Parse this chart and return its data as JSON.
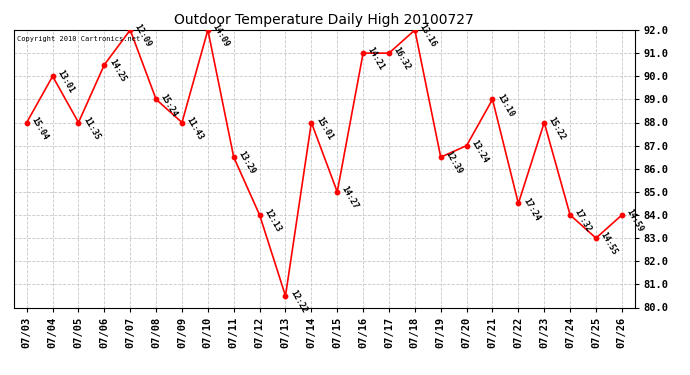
{
  "title": "Outdoor Temperature Daily High 20100727",
  "copyright": "Copyright 2010 Cartronics.net",
  "dates": [
    "07/03",
    "07/04",
    "07/05",
    "07/06",
    "07/07",
    "07/08",
    "07/09",
    "07/10",
    "07/11",
    "07/12",
    "07/13",
    "07/14",
    "07/15",
    "07/16",
    "07/17",
    "07/18",
    "07/19",
    "07/20",
    "07/21",
    "07/22",
    "07/23",
    "07/24",
    "07/25",
    "07/26"
  ],
  "temps": [
    88.0,
    90.0,
    88.0,
    90.5,
    92.0,
    89.0,
    88.0,
    92.0,
    86.5,
    84.0,
    80.5,
    88.0,
    85.0,
    91.0,
    91.0,
    92.0,
    86.5,
    87.0,
    89.0,
    84.5,
    88.0,
    84.0,
    83.0,
    84.0
  ],
  "labels": [
    "15:04",
    "13:01",
    "11:35",
    "14:25",
    "12:09",
    "15:24",
    "11:43",
    "14:09",
    "13:29",
    "12:13",
    "12:22",
    "15:01",
    "14:27",
    "14:21",
    "16:32",
    "13:16",
    "12:39",
    "13:24",
    "13:10",
    "17:24",
    "15:22",
    "17:32",
    "14:55",
    "14:59"
  ],
  "ylim": [
    80.0,
    92.0
  ],
  "yticks": [
    80.0,
    81.0,
    82.0,
    83.0,
    84.0,
    85.0,
    86.0,
    87.0,
    88.0,
    89.0,
    90.0,
    91.0,
    92.0
  ],
  "line_color": "red",
  "marker_color": "red",
  "bg_color": "#ffffff",
  "grid_color": "#c8c8c8",
  "label_fontsize": 6.0,
  "title_fontsize": 10,
  "figwidth": 6.9,
  "figheight": 3.75,
  "dpi": 100
}
